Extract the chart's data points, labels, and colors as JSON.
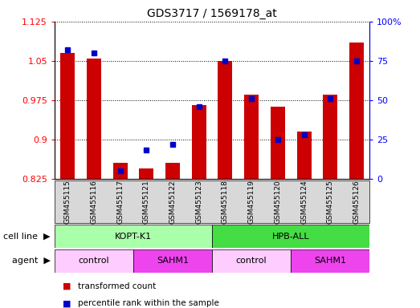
{
  "title": "GDS3717 / 1569178_at",
  "samples": [
    "GSM455115",
    "GSM455116",
    "GSM455117",
    "GSM455121",
    "GSM455122",
    "GSM455123",
    "GSM455118",
    "GSM455119",
    "GSM455120",
    "GSM455124",
    "GSM455125",
    "GSM455126"
  ],
  "transformed_count": [
    1.065,
    1.055,
    0.855,
    0.845,
    0.855,
    0.965,
    1.05,
    0.985,
    0.963,
    0.915,
    0.985,
    1.085
  ],
  "percentile_rank": [
    82,
    80,
    5,
    18,
    22,
    46,
    75,
    51,
    25,
    28,
    51,
    75
  ],
  "ylim_left": [
    0.825,
    1.125
  ],
  "ylim_right": [
    0,
    100
  ],
  "yticks_left": [
    0.825,
    0.9,
    0.975,
    1.05,
    1.125
  ],
  "yticks_right": [
    0,
    25,
    50,
    75,
    100
  ],
  "bar_color": "#cc0000",
  "dot_color": "#0000cc",
  "cell_line_groups": [
    {
      "label": "KOPT-K1",
      "start": 0,
      "end": 6,
      "color": "#aaffaa"
    },
    {
      "label": "HPB-ALL",
      "start": 6,
      "end": 12,
      "color": "#44dd44"
    }
  ],
  "agent_groups": [
    {
      "label": "control",
      "start": 0,
      "end": 3,
      "color": "#ffccff"
    },
    {
      "label": "SAHM1",
      "start": 3,
      "end": 6,
      "color": "#ee44ee"
    },
    {
      "label": "control",
      "start": 6,
      "end": 9,
      "color": "#ffccff"
    },
    {
      "label": "SAHM1",
      "start": 9,
      "end": 12,
      "color": "#ee44ee"
    }
  ],
  "legend_items": [
    {
      "label": "transformed count",
      "color": "#cc0000"
    },
    {
      "label": "percentile rank within the sample",
      "color": "#0000cc"
    }
  ],
  "row_labels": [
    "cell line",
    "agent"
  ],
  "bar_width": 0.55,
  "dot_size": 5.0,
  "xtick_bg": "#d8d8d8"
}
